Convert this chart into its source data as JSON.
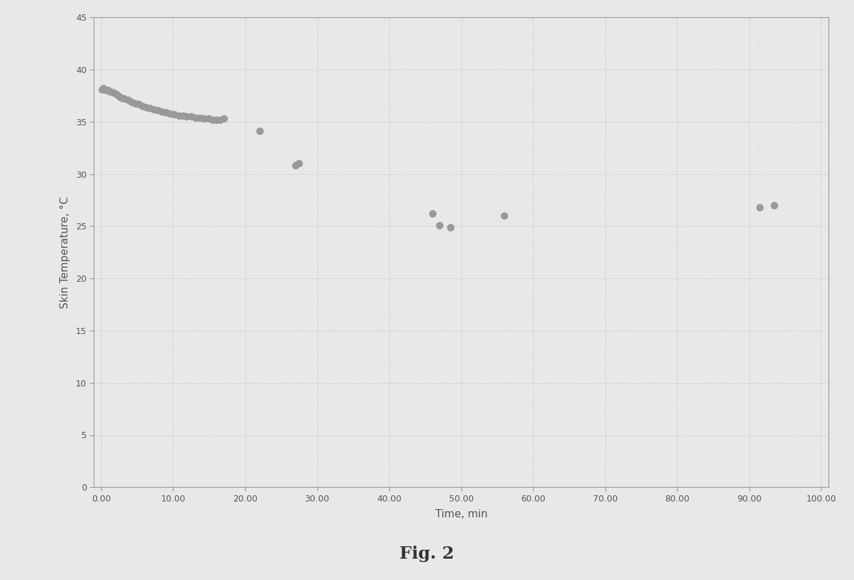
{
  "title": "",
  "xlabel": "Time, min",
  "ylabel": "Skin Temperature, °C",
  "xlim": [
    -1,
    101
  ],
  "ylim": [
    0,
    45
  ],
  "xticks": [
    0,
    10,
    20,
    30,
    40,
    50,
    60,
    70,
    80,
    90,
    100
  ],
  "yticks": [
    0,
    5,
    10,
    15,
    20,
    25,
    30,
    35,
    40,
    45
  ],
  "xtick_labels": [
    "0.00",
    "10.00",
    "20.00",
    "30.00",
    "40.00",
    "50.00",
    "60.00",
    "70.00",
    "80.00",
    "90.00",
    "100.00"
  ],
  "ytick_labels": [
    "0",
    "5",
    "10",
    "15",
    "20",
    "25",
    "30",
    "35",
    "40",
    "45"
  ],
  "caption": "Fig. 2",
  "marker_color": "#999999",
  "bg_color": "#e8e8e8",
  "plot_bg_color": "#e8e8e8",
  "grid_color": "#bbbbbb",
  "spine_color": "#999999",
  "tick_color": "#555555",
  "label_color": "#555555",
  "scatter_x": [
    0.1,
    0.3,
    0.5,
    0.8,
    1.0,
    1.3,
    1.6,
    2.0,
    2.4,
    2.8,
    3.2,
    3.7,
    4.2,
    4.7,
    5.2,
    5.8,
    6.3,
    6.8,
    7.4,
    7.9,
    8.4,
    9.0,
    9.6,
    10.2,
    10.8,
    11.4,
    11.9,
    12.5,
    13.1,
    13.7,
    14.3,
    14.9,
    15.5,
    16.0,
    16.5,
    17.0,
    22.0,
    27.0,
    27.5,
    46.0,
    47.0,
    48.5,
    56.0,
    91.5,
    93.5
  ],
  "scatter_y": [
    38.1,
    38.2,
    38.1,
    38.0,
    38.0,
    37.9,
    37.8,
    37.7,
    37.5,
    37.3,
    37.2,
    37.1,
    36.9,
    36.8,
    36.7,
    36.5,
    36.4,
    36.3,
    36.2,
    36.1,
    36.0,
    35.9,
    35.8,
    35.7,
    35.6,
    35.6,
    35.5,
    35.5,
    35.4,
    35.4,
    35.3,
    35.3,
    35.2,
    35.2,
    35.2,
    35.3,
    34.1,
    30.8,
    31.0,
    26.2,
    25.1,
    24.9,
    26.0,
    26.8,
    27.0
  ]
}
